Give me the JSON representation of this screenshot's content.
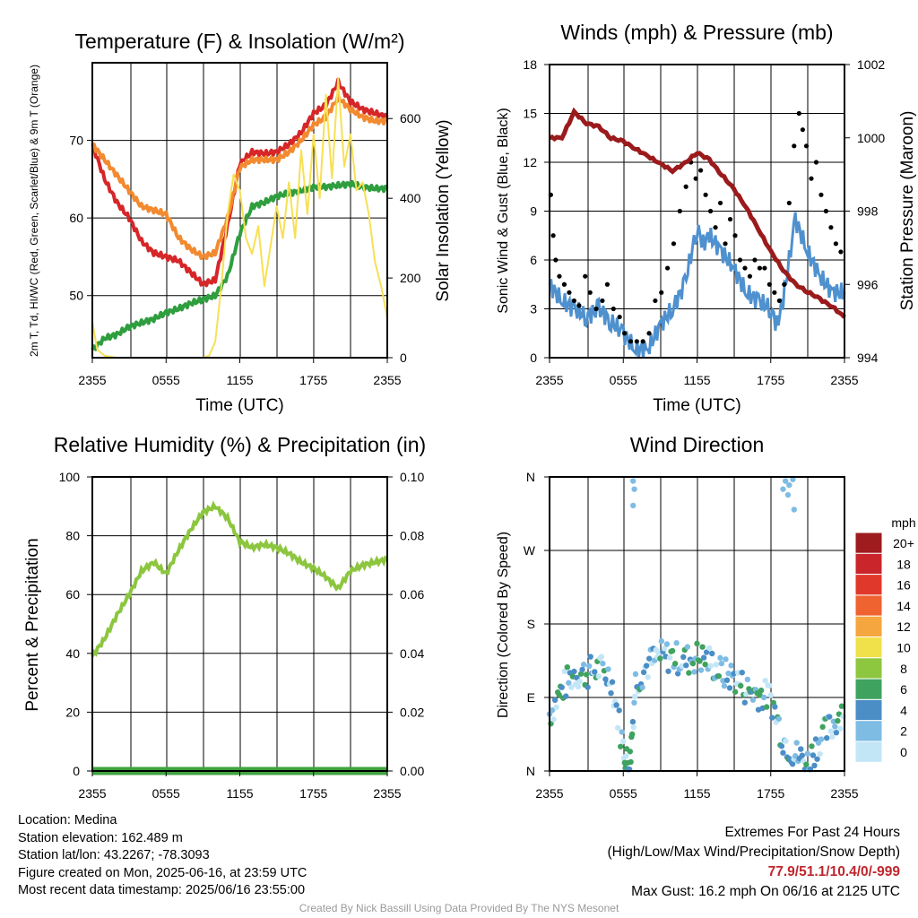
{
  "chart_data": [
    {
      "type": "line",
      "title": "Temperature (F) & Insolation (W/m²)",
      "xlabel": "Time (UTC)",
      "ylabel": "2m T, Td, HI/WC (Red, Green, Scarlet/Blue) & 9m T (Orange)",
      "y2label": "Solar Insolation (Yellow)",
      "x_ticks": [
        "2355",
        "0555",
        "1155",
        "1755",
        "2355"
      ],
      "y_ticks": [
        50,
        60,
        70
      ],
      "y2_ticks": [
        0,
        200,
        400,
        600
      ],
      "ylim": [
        42,
        80
      ],
      "y2lim": [
        0,
        740
      ],
      "grid": true,
      "series": [
        {
          "axis": "left",
          "color": "#2f9e3f",
          "x": [
            0,
            1,
            2,
            3,
            4,
            5,
            6,
            7,
            8,
            9,
            10,
            11,
            12,
            13,
            14,
            15,
            16,
            17,
            18,
            19,
            20,
            21,
            22,
            23,
            24
          ],
          "values": [
            43,
            44.5,
            45,
            46,
            46.5,
            47,
            47.8,
            48.3,
            49,
            49.5,
            50,
            52.5,
            58,
            61.5,
            62,
            62.8,
            63.2,
            63.5,
            64,
            64,
            64.2,
            64.4,
            64,
            63.8,
            63.8
          ]
        },
        {
          "axis": "left",
          "color": "#d62628",
          "x": [
            0,
            1,
            2,
            3,
            4,
            5,
            6,
            7,
            8,
            9,
            10,
            11,
            12,
            13,
            14,
            15,
            16,
            17,
            18,
            19,
            20,
            21,
            22,
            23,
            24
          ],
          "values": [
            69.5,
            65,
            62,
            60,
            57,
            55.5,
            55,
            54.5,
            53,
            51.5,
            52,
            59,
            67,
            68.5,
            68.3,
            68.5,
            69.5,
            71,
            73.5,
            74.5,
            77.5,
            75,
            74,
            73.5,
            73
          ]
        },
        {
          "axis": "left",
          "color": "#f28a30",
          "x": [
            0,
            1,
            2,
            3,
            4,
            5,
            6,
            7,
            8,
            9,
            10,
            11,
            12,
            13,
            14,
            15,
            16,
            17,
            18,
            19,
            20,
            21,
            22,
            23,
            24
          ],
          "values": [
            69.5,
            67.5,
            65.5,
            63.5,
            61.5,
            61,
            60.5,
            57.5,
            56,
            55,
            55.5,
            60,
            66.5,
            67.5,
            67.5,
            67.5,
            68.5,
            70,
            72,
            73,
            75.5,
            74,
            73,
            72.5,
            72.5
          ]
        },
        {
          "axis": "right",
          "color": "#f7e055",
          "x": [
            0,
            0.4,
            1,
            2,
            3,
            4,
            5,
            6,
            7,
            8,
            9,
            9.5,
            10,
            10.5,
            11,
            11.5,
            12,
            12.5,
            13,
            13.5,
            14,
            14.5,
            15,
            15.5,
            16,
            16.5,
            17,
            17.5,
            18,
            18.5,
            19,
            19.5,
            20,
            20.5,
            21,
            21.5,
            22,
            22.5,
            23,
            23.5,
            24
          ],
          "values": [
            90,
            20,
            5,
            0,
            0,
            0,
            0,
            0,
            0,
            0,
            0,
            5,
            40,
            180,
            360,
            460,
            420,
            300,
            260,
            330,
            180,
            280,
            380,
            300,
            440,
            300,
            520,
            360,
            560,
            400,
            660,
            450,
            700,
            480,
            560,
            420,
            440,
            360,
            240,
            180,
            100
          ]
        }
      ]
    },
    {
      "type": "scatter",
      "title": "Winds (mph) & Pressure (mb)",
      "xlabel": "Time (UTC)",
      "ylabel": "Sonic Wind & Gust (Blue, Black)",
      "y2label": "Station Pressure (Maroon)",
      "x_ticks": [
        "2355",
        "0555",
        "1155",
        "1755",
        "2355"
      ],
      "y_ticks": [
        0,
        3,
        6,
        9,
        12,
        15,
        18
      ],
      "y2_ticks": [
        994,
        996,
        998,
        1000,
        1002
      ],
      "ylim": [
        0,
        18
      ],
      "y2lim": [
        994,
        1002
      ],
      "grid": true,
      "series": [
        {
          "name": "",
          "axis": "left",
          "color": "#4f91cf",
          "x": [
            0,
            1,
            2,
            3,
            4,
            5,
            6,
            7,
            8,
            9,
            10,
            11,
            12,
            12.5,
            13,
            14,
            15,
            16,
            17,
            18,
            18.5,
            19,
            20,
            21,
            22,
            23,
            24
          ],
          "values": [
            4.5,
            3.5,
            3,
            2.5,
            3,
            2.2,
            1.5,
            0.5,
            0.5,
            2,
            3,
            4.5,
            8,
            7,
            7.5,
            6.5,
            5.5,
            4,
            3.5,
            3,
            2,
            3.5,
            8.5,
            6.5,
            5,
            4,
            4
          ]
        },
        {
          "name": "",
          "axis": "left",
          "color": "#000000",
          "type": "dots",
          "x": [
            0.1,
            0.3,
            0.5,
            0.8,
            1.2,
            1.6,
            2.0,
            2.4,
            2.9,
            3.3,
            3.8,
            4.3,
            4.7,
            5.2,
            5.7,
            6.1,
            6.6,
            7.1,
            7.6,
            8.1,
            8.6,
            9.1,
            9.6,
            10.1,
            10.6,
            11.1,
            11.5,
            11.9,
            12.3,
            12.7,
            13.1,
            13.5,
            13.9,
            14.3,
            14.7,
            15.1,
            15.5,
            15.9,
            16.3,
            16.7,
            17.1,
            17.5,
            17.9,
            18.3,
            18.7,
            19.1,
            19.5,
            19.9,
            20.3,
            20.6,
            20.9,
            21.3,
            21.7,
            22.1,
            22.5,
            22.9,
            23.3,
            23.7
          ],
          "values": [
            10,
            7.5,
            6,
            5,
            4.5,
            4,
            3.5,
            3.2,
            5,
            4,
            3,
            3.5,
            4.5,
            3,
            2.5,
            1.5,
            1,
            1,
            1,
            1.5,
            3.5,
            4,
            5.5,
            7,
            9,
            10.5,
            12,
            11,
            11.5,
            10,
            9,
            8,
            9.5,
            7,
            8.5,
            7.5,
            6,
            5.5,
            5,
            6,
            5.5,
            5.5,
            4.5,
            4,
            3.5,
            4.5,
            9.5,
            13,
            15,
            14,
            13,
            11,
            12,
            10,
            9,
            8,
            7,
            6.5
          ]
        },
        {
          "name": "",
          "axis": "right",
          "color": "#9b1b1d",
          "x": [
            0,
            1,
            2,
            3,
            4,
            5,
            6,
            7,
            8,
            9,
            10,
            11,
            12,
            13,
            14,
            15,
            16,
            17,
            18,
            19,
            20,
            21,
            22,
            23,
            24
          ],
          "values": [
            1000,
            1000,
            1000.7,
            1000.4,
            1000.3,
            1000,
            999.9,
            999.7,
            999.5,
            999.3,
            999.1,
            999.3,
            999.6,
            999.4,
            999.0,
            998.6,
            998.1,
            997.5,
            996.9,
            996.4,
            996.0,
            995.8,
            995.6,
            995.4,
            995.1
          ]
        }
      ]
    },
    {
      "type": "line",
      "title": "Relative Humidity (%) & Precipitation (in)",
      "xlabel": "",
      "ylabel": "Percent & Precipitation",
      "x_ticks": [
        "2355",
        "0555",
        "1155",
        "1755",
        "2355"
      ],
      "y_ticks": [
        0,
        20,
        40,
        60,
        80,
        100
      ],
      "y2_ticks": [
        "0.00",
        "0.02",
        "0.04",
        "0.06",
        "0.08",
        "0.10"
      ],
      "ylim": [
        0,
        100
      ],
      "y2lim": [
        0,
        0.1
      ],
      "grid": true,
      "series": [
        {
          "axis": "left",
          "color": "#8cc63f",
          "x": [
            0,
            1,
            2,
            3,
            4,
            5,
            6,
            7,
            8,
            9,
            10,
            11,
            12,
            13,
            14,
            15,
            16,
            17,
            18,
            19,
            20,
            21,
            22,
            23,
            24
          ],
          "values": [
            39,
            45,
            53,
            60,
            68,
            71,
            67,
            75,
            82,
            88,
            90,
            86,
            78,
            76,
            77,
            76,
            74,
            71,
            69,
            66,
            62,
            68,
            70,
            71,
            72
          ]
        },
        {
          "axis": "right",
          "color": "#3fa33f",
          "x": [
            0,
            24
          ],
          "values": [
            0,
            0
          ]
        }
      ]
    },
    {
      "type": "scatter",
      "title": "Wind Direction",
      "xlabel": "",
      "ylabel": "Direction (Colored By Speed)",
      "x_ticks": [
        "2355",
        "0555",
        "1155",
        "1755",
        "2355"
      ],
      "y_ticks": [
        "N",
        "E",
        "S",
        "W",
        "N"
      ],
      "ylim": [
        0,
        360
      ],
      "grid": true,
      "colorbar": {
        "unit": "mph",
        "labels": [
          "20+",
          "18",
          "16",
          "14",
          "12",
          "10",
          "8",
          "6",
          "4",
          "2",
          "0"
        ],
        "colors": [
          "#9e1b1e",
          "#c9252b",
          "#e0392b",
          "#ef6331",
          "#f5a63f",
          "#f0e04a",
          "#8dc63f",
          "#3fa35f",
          "#4b8ec6",
          "#7fbce4",
          "#c3e6f7"
        ]
      }
    }
  ],
  "footer": {
    "location": "Location: Medina",
    "elevation": "Station elevation: 162.489 m",
    "latlon": "Station lat/lon: 43.2267; -78.3093",
    "created": "Figure created on Mon, 2025-06-16, at 23:59 UTC",
    "recent": "Most recent data timestamp: 2025/06/16 23:55:00",
    "extremes_title": "Extremes For Past 24 Hours",
    "extremes_sub": "(High/Low/Max Wind/Precipitation/Snow Depth)",
    "extremes_values": "77.9/51.1/10.4/0/-999",
    "max_gust": "Max Gust: 16.2 mph On 06/16 at 2125 UTC",
    "credit": "Created By Nick Bassill Using Data Provided By The NYS Mesonet"
  }
}
